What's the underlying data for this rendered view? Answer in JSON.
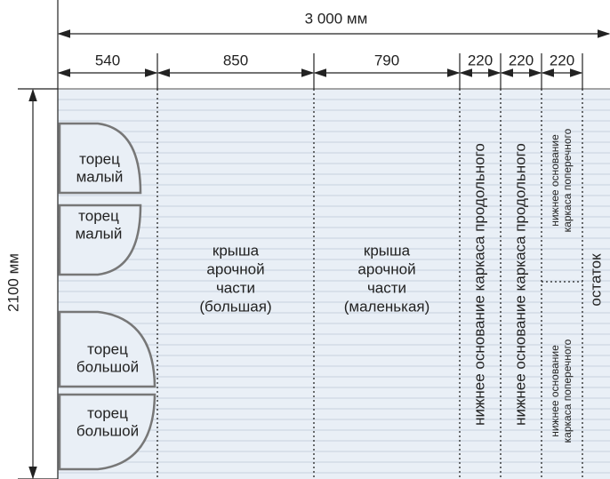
{
  "dimensions": {
    "total_width": "3 000 мм",
    "total_height": "2100 мм",
    "segments": [
      "540",
      "850",
      "790",
      "220",
      "220",
      "220"
    ]
  },
  "pieces": {
    "small_end_1": [
      "торец",
      "малый"
    ],
    "small_end_2": [
      "торец",
      "малый"
    ],
    "big_end_1": [
      "торец",
      "большой"
    ],
    "big_end_2": [
      "торец",
      "большой"
    ],
    "roof_big": [
      "крыша",
      "арочной",
      "части",
      "(большая)"
    ],
    "roof_small": [
      "крыша",
      "арочной",
      "части",
      "(маленькая)"
    ],
    "longitudinal_1": "нижнее основание каркаса продольного",
    "longitudinal_2": "нижнее основание каркаса продольного",
    "transverse_1": [
      "нижнее основание",
      "каркаса поперечного"
    ],
    "transverse_2": [
      "нижнее основание",
      "каркаса поперечного"
    ],
    "remainder": "остаток"
  }
}
